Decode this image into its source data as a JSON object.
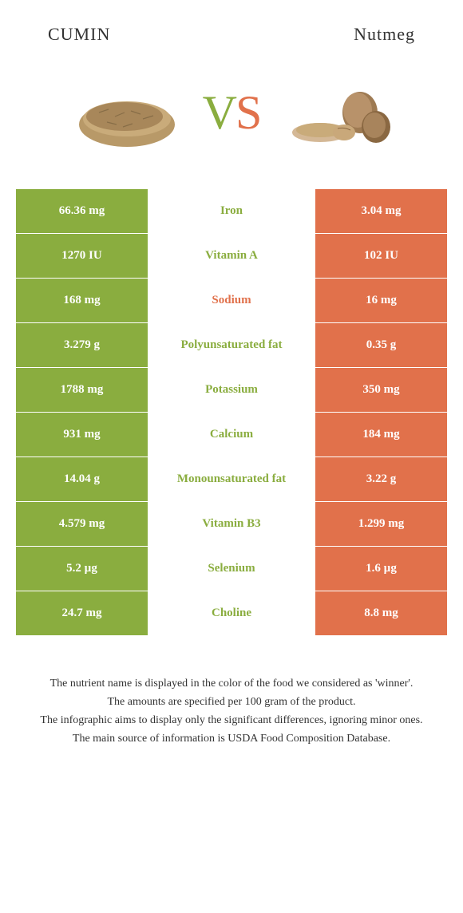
{
  "header": {
    "left_title": "CUMIN",
    "right_title": "Nutmeg"
  },
  "vs": {
    "v": "V",
    "s": "S"
  },
  "colors": {
    "left": "#8aad3f",
    "right": "#e1714b",
    "left_text": "#8aad3f",
    "right_text": "#e1714b"
  },
  "rows": [
    {
      "left": "66.36 mg",
      "label": "Iron",
      "right": "3.04 mg",
      "winner": "left"
    },
    {
      "left": "1270 IU",
      "label": "Vitamin A",
      "right": "102 IU",
      "winner": "left"
    },
    {
      "left": "168 mg",
      "label": "Sodium",
      "right": "16 mg",
      "winner": "right"
    },
    {
      "left": "3.279 g",
      "label": "Polyunsaturated fat",
      "right": "0.35 g",
      "winner": "left"
    },
    {
      "left": "1788 mg",
      "label": "Potassium",
      "right": "350 mg",
      "winner": "left"
    },
    {
      "left": "931 mg",
      "label": "Calcium",
      "right": "184 mg",
      "winner": "left"
    },
    {
      "left": "14.04 g",
      "label": "Monounsaturated fat",
      "right": "3.22 g",
      "winner": "left"
    },
    {
      "left": "4.579 mg",
      "label": "Vitamin B3",
      "right": "1.299 mg",
      "winner": "left"
    },
    {
      "left": "5.2 µg",
      "label": "Selenium",
      "right": "1.6 µg",
      "winner": "left"
    },
    {
      "left": "24.7 mg",
      "label": "Choline",
      "right": "8.8 mg",
      "winner": "left"
    }
  ],
  "footer": {
    "line1": "The nutrient name is displayed in the color of the food we considered as 'winner'.",
    "line2": "The amounts are specified per 100 gram of the product.",
    "line3": "The infographic aims to display only the significant differences, ignoring minor ones.",
    "line4": "The main source of information is USDA Food Composition Database."
  }
}
